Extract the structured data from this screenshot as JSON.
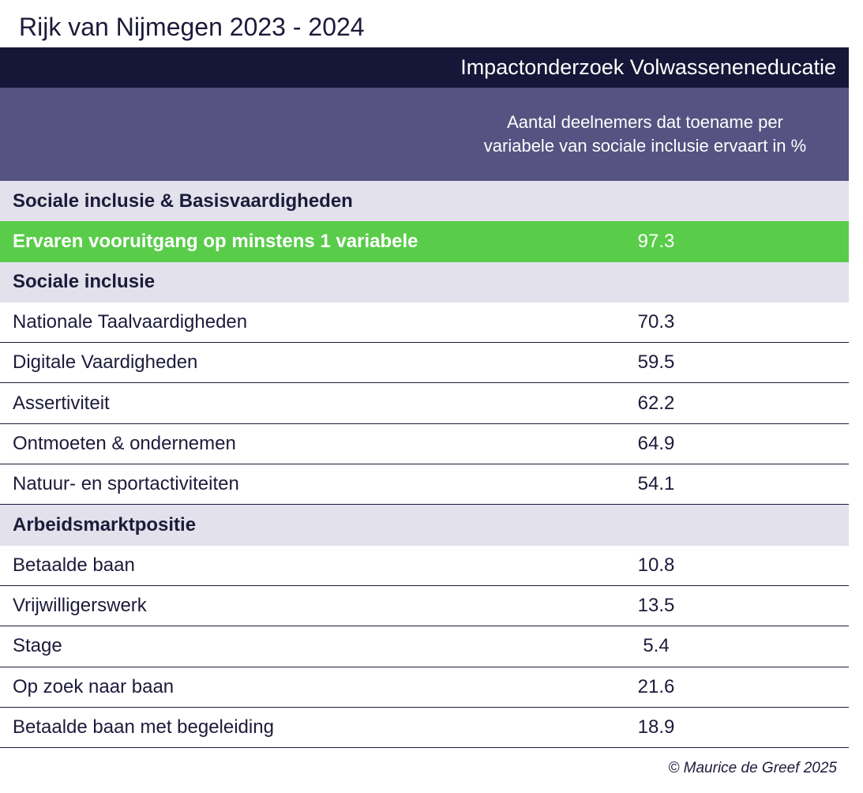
{
  "title": "Rijk van Nijmegen 2023 - 2024",
  "header": {
    "study": "Impactonderzoek Volwasseneneducatie",
    "column_line1": "Aantal deelnemers dat toename per",
    "column_line2": "variabele van sociale inclusie ervaart in %"
  },
  "footer": "© Maurice de Greef 2025",
  "colors": {
    "title_band": "#161638",
    "header_band": "#565281",
    "section_band": "#e2e1ec",
    "highlight": "#59cc4a",
    "text": "#1c1b3a"
  },
  "chart_data": {
    "type": "table",
    "title": "Rijk van Nijmegen 2023 - 2024",
    "columns": [
      "",
      "Aantal deelnemers dat toename per variabele van sociale inclusie ervaart in %"
    ],
    "rows": [
      {
        "kind": "section",
        "label": "Sociale inclusie & Basisvaardigheden",
        "value": ""
      },
      {
        "kind": "highlight",
        "label": "Ervaren vooruitgang op minstens 1 variabele",
        "value": "97.3"
      },
      {
        "kind": "section",
        "label": "Sociale inclusie",
        "value": ""
      },
      {
        "kind": "data",
        "label": "Nationale Taalvaardigheden",
        "value": "70.3"
      },
      {
        "kind": "data",
        "label": "Digitale Vaardigheden",
        "value": "59.5"
      },
      {
        "kind": "data",
        "label": "Assertiviteit",
        "value": "62.2"
      },
      {
        "kind": "data",
        "label": "Ontmoeten & ondernemen",
        "value": "64.9"
      },
      {
        "kind": "data",
        "label": "Natuur- en sportactiviteiten",
        "value": "54.1"
      },
      {
        "kind": "section",
        "label": "Arbeidsmarktpositie",
        "value": ""
      },
      {
        "kind": "data",
        "label": "Betaalde baan",
        "value": "10.8"
      },
      {
        "kind": "data",
        "label": "Vrijwilligerswerk",
        "value": "13.5"
      },
      {
        "kind": "data",
        "label": "Stage",
        "value": "5.4"
      },
      {
        "kind": "data",
        "label": "Op zoek naar baan",
        "value": "21.6"
      },
      {
        "kind": "data",
        "label": "Betaalde baan met begeleiding",
        "value": "18.9"
      }
    ]
  }
}
